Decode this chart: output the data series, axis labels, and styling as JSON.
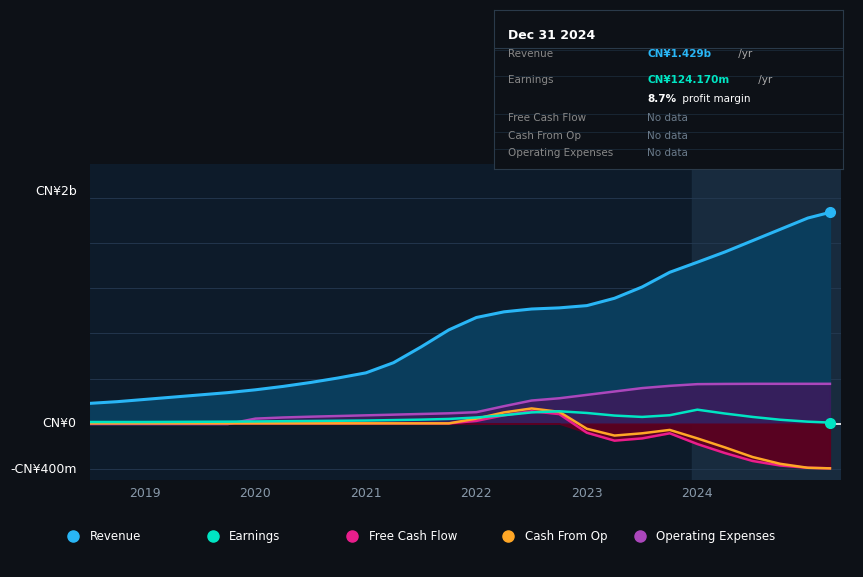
{
  "bg_color": "#0d1117",
  "plot_bg_color": "#0d1b2a",
  "grid_color": "#253a52",
  "zero_line_color": "#ffffff",
  "ylabel_top": "CN¥2b",
  "ylabel_bottom": "-CN¥400m",
  "ylabel_zero": "CN¥0",
  "xlim": [
    2018.5,
    2025.3
  ],
  "ylim": [
    -500000000,
    2300000000
  ],
  "xticks": [
    2019,
    2020,
    2021,
    2022,
    2023,
    2024
  ],
  "highlight_start": 2023.95,
  "highlight_end": 2025.3,
  "revenue": {
    "x": [
      2018.5,
      2018.75,
      2019.0,
      2019.25,
      2019.5,
      2019.75,
      2020.0,
      2020.25,
      2020.5,
      2020.75,
      2021.0,
      2021.25,
      2021.5,
      2021.75,
      2022.0,
      2022.25,
      2022.5,
      2022.75,
      2023.0,
      2023.25,
      2023.5,
      2023.75,
      2024.0,
      2024.25,
      2024.5,
      2024.75,
      2025.0,
      2025.2
    ],
    "y": [
      180000000,
      195000000,
      215000000,
      235000000,
      255000000,
      275000000,
      300000000,
      330000000,
      365000000,
      405000000,
      450000000,
      540000000,
      680000000,
      830000000,
      940000000,
      990000000,
      1015000000,
      1025000000,
      1045000000,
      1110000000,
      1210000000,
      1340000000,
      1429000000,
      1520000000,
      1620000000,
      1720000000,
      1820000000,
      1870000000
    ],
    "color": "#29b6f6",
    "fill_color": "#0a3d5c",
    "label": "Revenue"
  },
  "earnings": {
    "x": [
      2018.5,
      2018.75,
      2019.0,
      2019.25,
      2019.5,
      2019.75,
      2020.0,
      2020.25,
      2020.5,
      2020.75,
      2021.0,
      2021.25,
      2021.5,
      2021.75,
      2022.0,
      2022.25,
      2022.5,
      2022.75,
      2023.0,
      2023.25,
      2023.5,
      2023.75,
      2024.0,
      2024.25,
      2024.5,
      2024.75,
      2025.0,
      2025.2
    ],
    "y": [
      15000000,
      15000000,
      15000000,
      16000000,
      17000000,
      18000000,
      20000000,
      22000000,
      24000000,
      26000000,
      28000000,
      32000000,
      36000000,
      42000000,
      55000000,
      75000000,
      100000000,
      110000000,
      95000000,
      72000000,
      60000000,
      75000000,
      124170000,
      90000000,
      60000000,
      35000000,
      18000000,
      10000000
    ],
    "color": "#00e5c3",
    "label": "Earnings"
  },
  "free_cash_flow": {
    "x": [
      2018.5,
      2018.75,
      2019.0,
      2019.25,
      2019.5,
      2019.75,
      2020.0,
      2020.25,
      2020.5,
      2020.75,
      2021.0,
      2021.25,
      2021.5,
      2021.75,
      2022.0,
      2022.25,
      2022.5,
      2022.75,
      2023.0,
      2023.25,
      2023.5,
      2023.75,
      2024.0,
      2024.25,
      2024.5,
      2024.75,
      2025.0,
      2025.2
    ],
    "y": [
      3000000,
      3000000,
      3000000,
      3000000,
      3000000,
      3000000,
      3000000,
      3000000,
      3000000,
      3000000,
      3000000,
      3000000,
      3000000,
      3000000,
      25000000,
      75000000,
      110000000,
      85000000,
      -80000000,
      -150000000,
      -130000000,
      -85000000,
      -180000000,
      -260000000,
      -330000000,
      -370000000,
      -390000000,
      -395000000
    ],
    "color": "#e91e8c",
    "fill_color": "#5c0020",
    "label": "Free Cash Flow"
  },
  "cash_from_op": {
    "x": [
      2018.5,
      2018.75,
      2019.0,
      2019.25,
      2019.5,
      2019.75,
      2020.0,
      2020.25,
      2020.5,
      2020.75,
      2021.0,
      2021.25,
      2021.5,
      2021.75,
      2022.0,
      2022.25,
      2022.5,
      2022.75,
      2023.0,
      2023.25,
      2023.5,
      2023.75,
      2024.0,
      2024.25,
      2024.5,
      2024.75,
      2025.0,
      2025.2
    ],
    "y": [
      3000000,
      3000000,
      3000000,
      3000000,
      3000000,
      3000000,
      3000000,
      3000000,
      3000000,
      3000000,
      3000000,
      3000000,
      3000000,
      3000000,
      45000000,
      100000000,
      135000000,
      105000000,
      -45000000,
      -105000000,
      -85000000,
      -55000000,
      -130000000,
      -210000000,
      -295000000,
      -355000000,
      -390000000,
      -395000000
    ],
    "color": "#ffa726",
    "label": "Cash From Op"
  },
  "operating_expenses": {
    "x": [
      2018.5,
      2018.75,
      2019.0,
      2019.25,
      2019.5,
      2019.75,
      2020.0,
      2020.25,
      2020.5,
      2020.75,
      2021.0,
      2021.25,
      2021.5,
      2021.75,
      2022.0,
      2022.25,
      2022.5,
      2022.75,
      2023.0,
      2023.25,
      2023.5,
      2023.75,
      2024.0,
      2024.25,
      2024.5,
      2024.75,
      2025.0,
      2025.2
    ],
    "y": [
      -3000000,
      -3000000,
      -3000000,
      -3000000,
      -3000000,
      -3000000,
      45000000,
      55000000,
      62000000,
      68000000,
      74000000,
      80000000,
      86000000,
      92000000,
      102000000,
      155000000,
      205000000,
      225000000,
      255000000,
      285000000,
      315000000,
      335000000,
      350000000,
      352000000,
      353000000,
      353000000,
      353000000,
      353000000
    ],
    "color": "#ab47bc",
    "fill_color": "#3d1a5c",
    "label": "Operating Expenses"
  },
  "legend_items": [
    {
      "label": "Revenue",
      "color": "#29b6f6"
    },
    {
      "label": "Earnings",
      "color": "#00e5c3"
    },
    {
      "label": "Free Cash Flow",
      "color": "#e91e8c"
    },
    {
      "label": "Cash From Op",
      "color": "#ffa726"
    },
    {
      "label": "Operating Expenses",
      "color": "#ab47bc"
    }
  ]
}
